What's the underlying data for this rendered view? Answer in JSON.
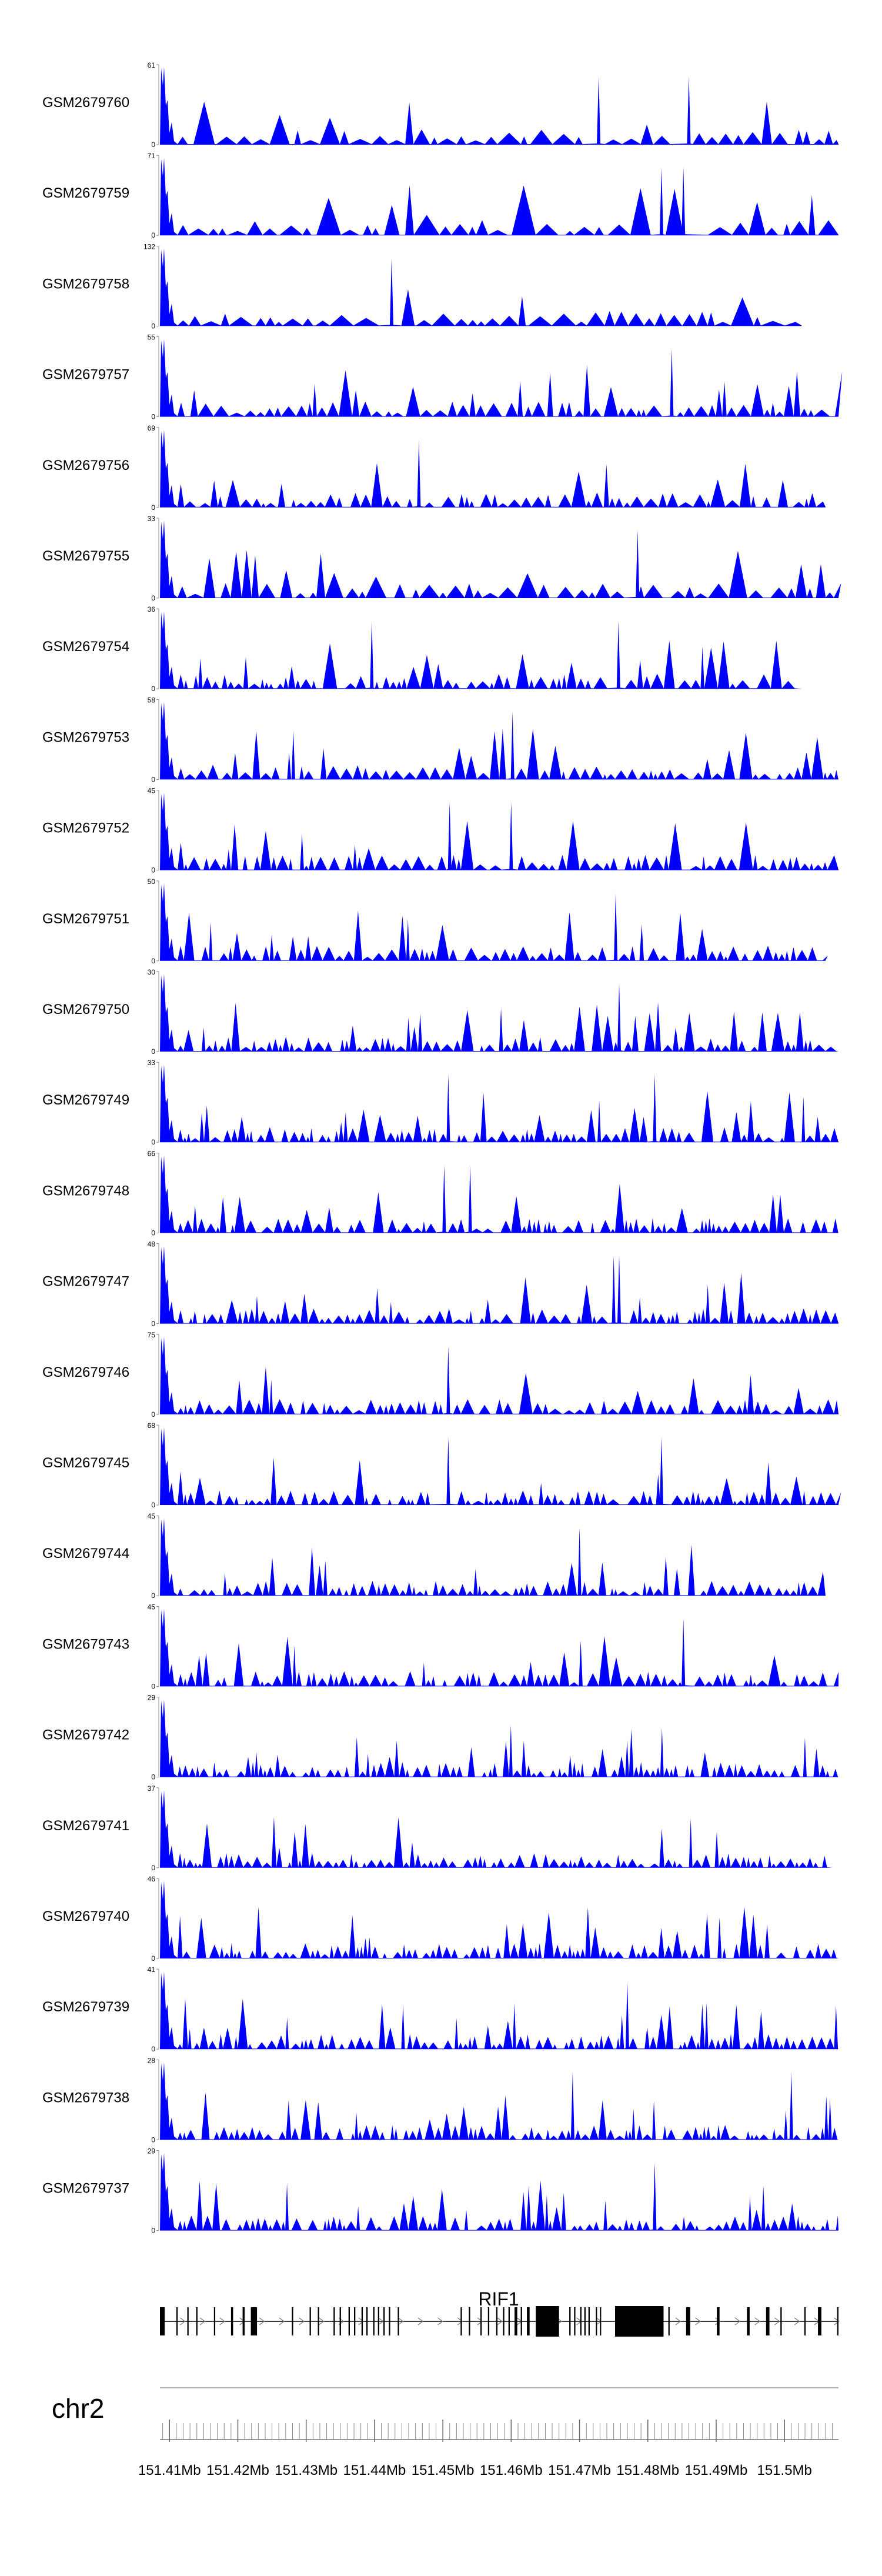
{
  "chart_data": {
    "type": "area",
    "title": "",
    "chromosome": "chr2",
    "fill_color": "#0000FF",
    "xlim": [
      151.4086,
      151.5079
    ],
    "x_unit": "Mb",
    "x_tick_labels": [
      {
        "x": 151.41,
        "label": "151.41Mb"
      },
      {
        "x": 151.42,
        "label": "151.42Mb"
      },
      {
        "x": 151.43,
        "label": "151.43Mb"
      },
      {
        "x": 151.44,
        "label": "151.44Mb"
      },
      {
        "x": 151.45,
        "label": "151.45Mb"
      },
      {
        "x": 151.46,
        "label": "151.46Mb"
      },
      {
        "x": 151.47,
        "label": "151.47Mb"
      },
      {
        "x": 151.48,
        "label": "151.48Mb"
      },
      {
        "x": 151.49,
        "label": "151.49Mb"
      },
      {
        "x": 151.5,
        "label": "151.5Mb"
      }
    ],
    "gene": {
      "name": "RIF1",
      "start": 151.4086,
      "end": 151.5079,
      "exons": [
        [
          151.4086,
          151.4093
        ],
        [
          151.411,
          151.4112
        ],
        [
          151.4126,
          151.4128
        ],
        [
          151.4139,
          151.4141
        ],
        [
          151.4165,
          151.4167
        ],
        [
          151.419,
          151.4193
        ],
        [
          151.4207,
          151.421
        ],
        [
          151.4219,
          151.4228
        ],
        [
          151.4279,
          151.4281
        ],
        [
          151.4305,
          151.4307
        ],
        [
          151.4317,
          151.4319
        ],
        [
          151.434,
          151.4342
        ],
        [
          151.4349,
          151.4351
        ],
        [
          151.4362,
          151.4364
        ],
        [
          151.437,
          151.4372
        ],
        [
          151.4381,
          151.4383
        ],
        [
          151.4388,
          151.439
        ],
        [
          151.4398,
          151.44
        ],
        [
          151.4405,
          151.4407
        ],
        [
          151.4413,
          151.4415
        ],
        [
          151.4421,
          151.4423
        ],
        [
          151.4434,
          151.4436
        ],
        [
          151.4526,
          151.4528
        ],
        [
          151.4538,
          151.454
        ],
        [
          151.4555,
          151.4557
        ],
        [
          151.4566,
          151.4568
        ],
        [
          151.4578,
          151.458
        ],
        [
          151.4588,
          151.459
        ],
        [
          151.4596,
          151.4598
        ],
        [
          151.4605,
          151.4609
        ],
        [
          151.4614,
          151.4616
        ],
        [
          151.4623,
          151.4627
        ],
        [
          151.4636,
          151.467
        ],
        [
          151.4685,
          151.4687
        ],
        [
          151.4692,
          151.4694
        ],
        [
          151.4701,
          151.4703
        ],
        [
          151.4707,
          151.4709
        ],
        [
          151.4713,
          151.4715
        ],
        [
          151.4724,
          151.4725
        ],
        [
          151.473,
          151.4731
        ],
        [
          151.4752,
          151.4823
        ],
        [
          151.483,
          151.4832
        ],
        [
          151.4856,
          151.4862
        ],
        [
          151.4901,
          151.4905
        ],
        [
          151.4945,
          151.4949
        ],
        [
          151.4973,
          151.4978
        ],
        [
          151.4994,
          151.4996
        ],
        [
          151.5029,
          151.5031
        ],
        [
          151.5049,
          151.5054
        ],
        [
          151.5077,
          151.5079
        ]
      ]
    },
    "series": [
      {
        "name": "GSM2679760",
        "ymax": 61,
        "ymax_label": "61",
        "seed": 11,
        "npeaks": 48,
        "narrow": 6,
        "spike_at": [
          151.4728,
          151.486
        ]
      },
      {
        "name": "GSM2679759",
        "ymax": 71,
        "ymax_label": "71",
        "seed": 23,
        "npeaks": 45,
        "narrow": 6,
        "spike_at": [
          151.482,
          151.4852
        ]
      },
      {
        "name": "GSM2679758",
        "ymax": 132,
        "ymax_label": "132",
        "seed": 37,
        "npeaks": 42,
        "narrow": 5,
        "spike_at": [
          151.4425
        ],
        "end_at": 151.5025
      },
      {
        "name": "GSM2679757",
        "ymax": 55,
        "ymax_label": "55",
        "seed": 41,
        "npeaks": 70,
        "narrow": 14,
        "spike_at": [
          151.4835
        ]
      },
      {
        "name": "GSM2679756",
        "ymax": 69,
        "ymax_label": "69",
        "seed": 53,
        "npeaks": 75,
        "narrow": 12,
        "spike_at": [
          151.4465
        ],
        "end_at": 151.506
      },
      {
        "name": "GSM2679755",
        "ymax": 33,
        "ymax_label": "33",
        "seed": 67,
        "npeaks": 55,
        "narrow": 14,
        "spike_at": [
          151.4785
        ]
      },
      {
        "name": "GSM2679754",
        "ymax": 36,
        "ymax_label": "36",
        "seed": 79,
        "npeaks": 75,
        "narrow": 28,
        "spike_at": [
          151.4396,
          151.4757
        ],
        "end_at": 151.5026
      },
      {
        "name": "GSM2679753",
        "ymax": 58,
        "ymax_label": "58",
        "seed": 83,
        "npeaks": 78,
        "narrow": 12,
        "spike_at": [
          151.4602
        ]
      },
      {
        "name": "GSM2679752",
        "ymax": 45,
        "ymax_label": "45",
        "seed": 97,
        "npeaks": 80,
        "narrow": 14,
        "spike_at": [
          151.451,
          151.46
        ]
      },
      {
        "name": "GSM2679751",
        "ymax": 50,
        "ymax_label": "50",
        "seed": 101,
        "npeaks": 82,
        "narrow": 20,
        "spike_at": [
          151.4753
        ],
        "end_at": 151.506
      },
      {
        "name": "GSM2679750",
        "ymax": 30,
        "ymax_label": "30",
        "seed": 113,
        "npeaks": 88,
        "narrow": 26,
        "spike_at": [
          151.4758
        ]
      },
      {
        "name": "GSM2679749",
        "ymax": 33,
        "ymax_label": "33",
        "seed": 127,
        "npeaks": 95,
        "narrow": 36,
        "spike_at": [
          151.4508,
          151.481
        ]
      },
      {
        "name": "GSM2679748",
        "ymax": 66,
        "ymax_label": "66",
        "seed": 131,
        "npeaks": 92,
        "narrow": 16,
        "spike_at": [
          151.4502,
          151.454
        ]
      },
      {
        "name": "GSM2679747",
        "ymax": 48,
        "ymax_label": "48",
        "seed": 149,
        "npeaks": 90,
        "narrow": 22,
        "spike_at": [
          151.475,
          151.4758
        ]
      },
      {
        "name": "GSM2679746",
        "ymax": 75,
        "ymax_label": "75",
        "seed": 151,
        "npeaks": 85,
        "narrow": 14,
        "spike_at": [
          151.4508
        ]
      },
      {
        "name": "GSM2679745",
        "ymax": 68,
        "ymax_label": "68",
        "seed": 163,
        "npeaks": 90,
        "narrow": 14,
        "spike_at": [
          151.4508,
          151.482
        ]
      },
      {
        "name": "GSM2679744",
        "ymax": 45,
        "ymax_label": "45",
        "seed": 173,
        "npeaks": 96,
        "narrow": 18,
        "spike_at": [
          151.47
        ],
        "end_at": 151.506
      },
      {
        "name": "GSM2679743",
        "ymax": 45,
        "ymax_label": "45",
        "seed": 181,
        "npeaks": 92,
        "narrow": 20,
        "spike_at": [
          151.451,
          151.4852
        ]
      },
      {
        "name": "GSM2679742",
        "ymax": 29,
        "ymax_label": "29",
        "seed": 191,
        "npeaks": 125,
        "narrow": 34,
        "spike_at": []
      },
      {
        "name": "GSM2679741",
        "ymax": 37,
        "ymax_label": "37",
        "seed": 193,
        "npeaks": 110,
        "narrow": 24,
        "spike_at": [],
        "end_at": 151.507
      },
      {
        "name": "GSM2679740",
        "ymax": 46,
        "ymax_label": "46",
        "seed": 197,
        "npeaks": 110,
        "narrow": 26,
        "spike_at": []
      },
      {
        "name": "GSM2679739",
        "ymax": 41,
        "ymax_label": "41",
        "seed": 199,
        "npeaks": 115,
        "narrow": 30,
        "spike_at": [
          151.477
        ]
      },
      {
        "name": "GSM2679738",
        "ymax": 28,
        "ymax_label": "28",
        "seed": 211,
        "npeaks": 110,
        "narrow": 34,
        "spike_at": [
          151.469,
          151.501
        ]
      },
      {
        "name": "GSM2679737",
        "ymax": 29,
        "ymax_label": "29",
        "seed": 223,
        "npeaks": 108,
        "narrow": 30,
        "spike_at": [
          151.4508,
          151.481
        ]
      }
    ]
  }
}
